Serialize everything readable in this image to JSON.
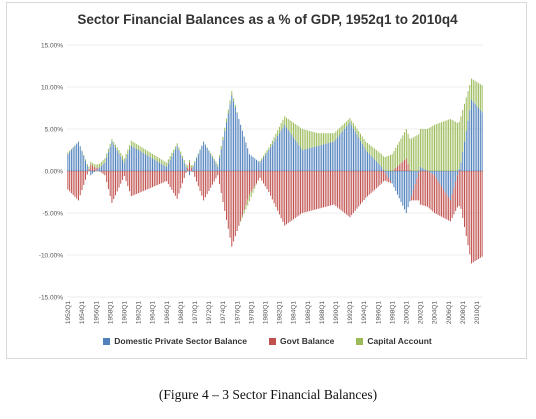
{
  "caption": "(Figure 4 – 3 Sector Financial Balances)",
  "chart_data": {
    "type": "bar",
    "stacked": true,
    "title": "Sector Financial Balances as a % of GDP, 1952q1 to 2010q4",
    "xlabel": "",
    "ylabel": "",
    "ylim": [
      -15,
      15
    ],
    "yticks": [
      -15,
      -10,
      -5,
      0,
      5,
      10,
      15
    ],
    "ytick_labels": [
      "-15.00%",
      "-10.00%",
      "-5.00%",
      "0.00%",
      "5.00%",
      "10.00%",
      "15.00%"
    ],
    "xtick_labels": [
      "1952Q1",
      "1954Q1",
      "1956Q1",
      "1958Q1",
      "1960Q1",
      "1962Q1",
      "1964Q1",
      "1966Q1",
      "1968Q1",
      "1970Q1",
      "1972Q1",
      "1974Q1",
      "1976Q1",
      "1978Q1",
      "1980Q1",
      "1982Q1",
      "1984Q1",
      "1986Q1",
      "1988Q1",
      "1990Q1",
      "1992Q1",
      "1994Q1",
      "1996Q1",
      "1998Q1",
      "2000Q1",
      "2002Q1",
      "2004Q1",
      "2006Q1",
      "2008Q1",
      "2010Q1"
    ],
    "grid": true,
    "legend_position": "bottom",
    "x_start": "1952Q1",
    "x_end": "2010Q4",
    "key_points": [
      {
        "period": "1952Q1",
        "private": 2.0,
        "govt": -2.2,
        "capital": 0.2
      },
      {
        "period": "1953Q3",
        "private": 3.5,
        "govt": -3.5,
        "capital": 0.0
      },
      {
        "period": "1955Q2",
        "private": -0.5,
        "govt": 0.8,
        "capital": 0.3
      },
      {
        "period": "1957Q2",
        "private": 1.0,
        "govt": -0.5,
        "capital": 0.5
      },
      {
        "period": "1958Q2",
        "private": 3.5,
        "govt": -3.8,
        "capital": 0.3
      },
      {
        "period": "1960Q1",
        "private": 1.0,
        "govt": -0.6,
        "capital": 0.5
      },
      {
        "period": "1961Q1",
        "private": 3.0,
        "govt": -3.0,
        "capital": 0.6
      },
      {
        "period": "1966Q1",
        "private": 0.5,
        "govt": -1.2,
        "capital": 0.5
      },
      {
        "period": "1967Q3",
        "private": 3.0,
        "govt": -3.3,
        "capital": 0.3
      },
      {
        "period": "1969Q2",
        "private": -0.5,
        "govt": 1.0,
        "capital": 0.3
      },
      {
        "period": "1971Q2",
        "private": 3.5,
        "govt": -3.5,
        "capital": 0.0
      },
      {
        "period": "1973Q2",
        "private": 0.5,
        "govt": -0.5,
        "capital": 0.3
      },
      {
        "period": "1975Q2",
        "private": 9.0,
        "govt": -9.0,
        "capital": 0.5
      },
      {
        "period": "1977Q4",
        "private": 2.0,
        "govt": -2.8,
        "capital": -0.8
      },
      {
        "period": "1979Q2",
        "private": 1.0,
        "govt": -0.8,
        "capital": 0.2
      },
      {
        "period": "1980Q3",
        "private": 2.5,
        "govt": -2.5,
        "capital": 0.3
      },
      {
        "period": "1982Q4",
        "private": 5.5,
        "govt": -6.5,
        "capital": 1.0
      },
      {
        "period": "1985Q2",
        "private": 2.5,
        "govt": -5.0,
        "capital": 2.5
      },
      {
        "period": "1987Q3",
        "private": 3.0,
        "govt": -4.5,
        "capital": 1.5
      },
      {
        "period": "1989Q4",
        "private": 3.5,
        "govt": -4.0,
        "capital": 1.0
      },
      {
        "period": "1992Q1",
        "private": 5.8,
        "govt": -5.5,
        "capital": 0.5
      },
      {
        "period": "1994Q2",
        "private": 2.5,
        "govt": -3.2,
        "capital": 1.0
      },
      {
        "period": "1996Q3",
        "private": 0.5,
        "govt": -1.5,
        "capital": 1.5
      },
      {
        "period": "1998Q1",
        "private": -1.5,
        "govt": 0.0,
        "capital": 2.0
      },
      {
        "period": "2000Q1",
        "private": -5.0,
        "govt": 1.5,
        "capital": 3.5
      },
      {
        "period": "2002Q1",
        "private": 0.5,
        "govt": -4.0,
        "capital": 4.5
      },
      {
        "period": "2004Q1",
        "private": -0.5,
        "govt": -4.5,
        "capital": 5.5
      },
      {
        "period": "2006Q2",
        "private": -3.5,
        "govt": -2.5,
        "capital": 6.2
      },
      {
        "period": "2007Q4",
        "private": 1.0,
        "govt": -4.5,
        "capital": 5.5
      },
      {
        "period": "2009Q2",
        "private": 8.5,
        "govt": -11.0,
        "capital": 2.5
      },
      {
        "period": "2010Q4",
        "private": 7.0,
        "govt": -10.2,
        "capital": 3.2
      }
    ],
    "series": [
      {
        "name": "Domestic Private Sector Balance",
        "key": "private",
        "color": "#4f81bd"
      },
      {
        "name": "Govt Balance",
        "key": "govt",
        "color": "#c0504d"
      },
      {
        "name": "Capital Account",
        "key": "capital",
        "color": "#9bbb59"
      }
    ]
  }
}
